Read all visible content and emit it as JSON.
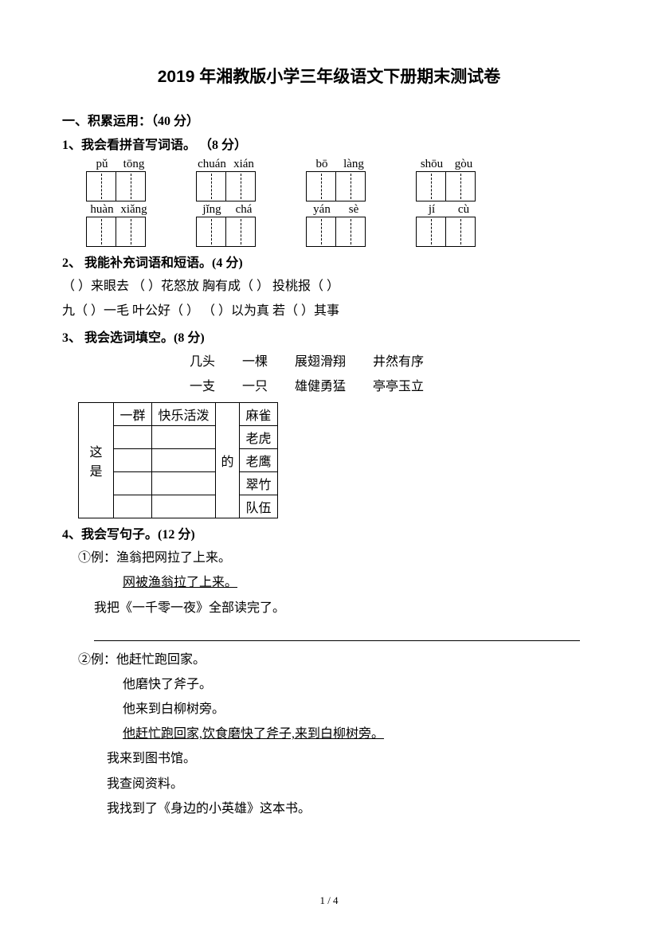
{
  "title": "2019 年湘教版小学三年级语文下册期末测试卷",
  "s1": {
    "head": "一、积累运用：（40 分）",
    "q1_head": "1、我会看拼音写词语。 （8 分）",
    "pinyin_rows": [
      [
        [
          "pǔ",
          "tōng"
        ],
        [
          "chuán",
          "xián"
        ],
        [
          "bō",
          "làng"
        ],
        [
          "shōu",
          "gòu"
        ]
      ],
      [
        [
          "huàn",
          "xiǎng"
        ],
        [
          "jǐng",
          "chá"
        ],
        [
          "yán",
          "sè"
        ],
        [
          "jí",
          "cù"
        ]
      ]
    ],
    "q2_head": "2、  我能补充词语和短语。(4 分)",
    "q2_line1": "（  ）来眼去  （  ）花怒放  胸有成（  ）  投桃报（  ）",
    "q2_line2": "九（  ）一毛  叶公好（  ）  （  ）以为真  若（  ）其事",
    "q3_head": "3、  我会选词填空。(8 分)",
    "bank": [
      [
        "几头",
        "一棵",
        "展翅滑翔",
        "井然有序"
      ],
      [
        "一支",
        "一只",
        "雄健勇猛",
        "亭亭玉立"
      ]
    ],
    "q3_table": {
      "left": "这是",
      "mid": "的",
      "rows": [
        {
          "c2": "一群",
          "c3": "快乐活泼",
          "c5": "麻雀"
        },
        {
          "c2": "",
          "c3": "",
          "c5": "老虎"
        },
        {
          "c2": "",
          "c3": "",
          "c5": "老鹰"
        },
        {
          "c2": "",
          "c3": "",
          "c5": "翠竹"
        },
        {
          "c2": "",
          "c3": "",
          "c5": "队伍"
        }
      ]
    },
    "q4_head": "4、我会写句子。(12 分)",
    "q4_1_eg": "①例：渔翁把网拉了上来。",
    "q4_1_ans": "网被渔翁拉了上来。",
    "q4_1_prompt": "我把《一千零一夜》全部读完了。",
    "q4_2_eg": "②例：他赶忙跑回家。",
    "q4_2_l2": "他磨快了斧子。",
    "q4_2_l3": "他来到白柳树旁。",
    "q4_2_ans": "他赶忙跑回家,饮食磨快了斧子,来到白柳树旁。",
    "q4_2_p1": "我来到图书馆。",
    "q4_2_p2": "我查阅资料。",
    "q4_2_p3": "我找到了《身边的小英雄》这本书。"
  },
  "footer": "1 / 4"
}
